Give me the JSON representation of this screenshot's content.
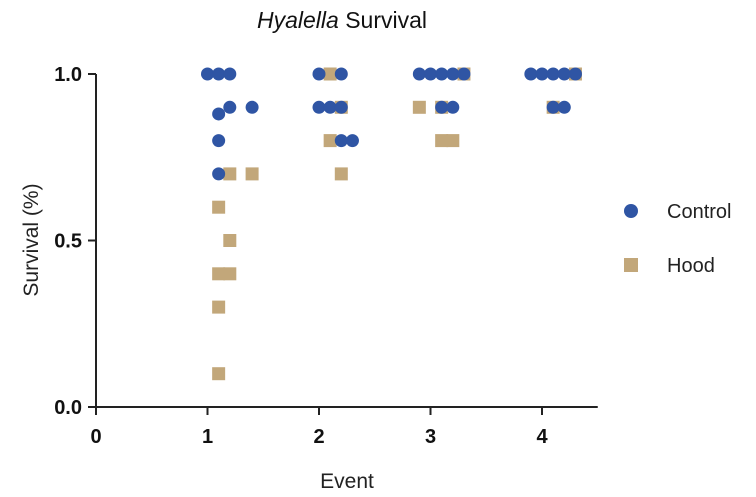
{
  "chart_data": {
    "type": "scatter",
    "title": {
      "italic": "Hyalella",
      "rest": " Survival"
    },
    "xlabel": "Event",
    "ylabel": "Survival (%)",
    "xlim": [
      0,
      4.5
    ],
    "ylim": [
      0,
      1.0
    ],
    "xticks": [
      "0",
      "1",
      "2",
      "3",
      "4"
    ],
    "yticks": [
      "0.0",
      "0.5",
      "1.0"
    ],
    "grid": false,
    "legend": "right",
    "series": [
      {
        "name": "Control",
        "color": "#2f55a4",
        "marker": "circle",
        "points": [
          {
            "x": 1.0,
            "y": 1.0
          },
          {
            "x": 1.1,
            "y": 1.0
          },
          {
            "x": 1.2,
            "y": 1.0
          },
          {
            "x": 1.1,
            "y": 0.88
          },
          {
            "x": 1.2,
            "y": 0.9
          },
          {
            "x": 1.4,
            "y": 0.9
          },
          {
            "x": 1.1,
            "y": 0.8
          },
          {
            "x": 1.1,
            "y": 0.7
          },
          {
            "x": 2.0,
            "y": 1.0
          },
          {
            "x": 2.2,
            "y": 1.0
          },
          {
            "x": 2.0,
            "y": 0.9
          },
          {
            "x": 2.1,
            "y": 0.9
          },
          {
            "x": 2.2,
            "y": 0.9
          },
          {
            "x": 2.2,
            "y": 0.8
          },
          {
            "x": 2.3,
            "y": 0.8
          },
          {
            "x": 2.9,
            "y": 1.0
          },
          {
            "x": 3.0,
            "y": 1.0
          },
          {
            "x": 3.1,
            "y": 1.0
          },
          {
            "x": 3.2,
            "y": 1.0
          },
          {
            "x": 3.3,
            "y": 1.0
          },
          {
            "x": 3.1,
            "y": 0.9
          },
          {
            "x": 3.2,
            "y": 0.9
          },
          {
            "x": 3.9,
            "y": 1.0
          },
          {
            "x": 4.0,
            "y": 1.0
          },
          {
            "x": 4.1,
            "y": 1.0
          },
          {
            "x": 4.2,
            "y": 1.0
          },
          {
            "x": 4.3,
            "y": 1.0
          },
          {
            "x": 4.1,
            "y": 0.9
          },
          {
            "x": 4.2,
            "y": 0.9
          }
        ]
      },
      {
        "name": "Hood",
        "color": "#c2a77a",
        "marker": "square",
        "points": [
          {
            "x": 1.2,
            "y": 0.7
          },
          {
            "x": 1.4,
            "y": 0.7
          },
          {
            "x": 1.1,
            "y": 0.6
          },
          {
            "x": 1.2,
            "y": 0.5
          },
          {
            "x": 1.1,
            "y": 0.4
          },
          {
            "x": 1.2,
            "y": 0.4
          },
          {
            "x": 1.1,
            "y": 0.3
          },
          {
            "x": 1.1,
            "y": 0.1
          },
          {
            "x": 2.1,
            "y": 1.0
          },
          {
            "x": 2.2,
            "y": 0.9
          },
          {
            "x": 2.1,
            "y": 0.8
          },
          {
            "x": 2.2,
            "y": 0.7
          },
          {
            "x": 2.9,
            "y": 0.9
          },
          {
            "x": 3.1,
            "y": 0.9
          },
          {
            "x": 3.1,
            "y": 0.8
          },
          {
            "x": 3.2,
            "y": 0.8
          },
          {
            "x": 3.3,
            "y": 1.0
          },
          {
            "x": 4.1,
            "y": 0.9
          },
          {
            "x": 4.3,
            "y": 1.0
          }
        ]
      }
    ]
  }
}
